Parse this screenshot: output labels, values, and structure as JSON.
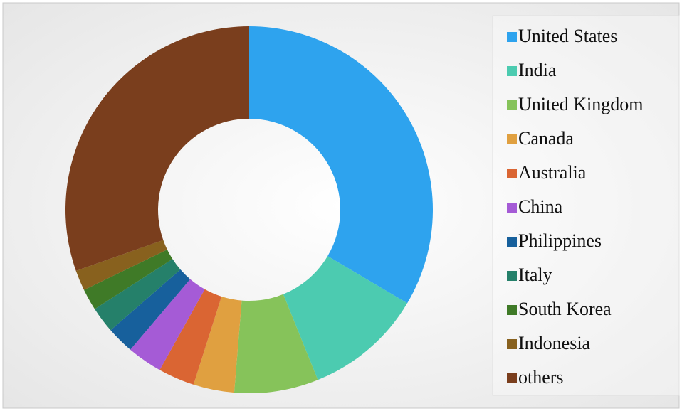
{
  "chart_data": {
    "type": "donut",
    "categories": [
      "United States",
      "India",
      "United Kingdom",
      "Canada",
      "Australia",
      "China",
      "Philippines",
      "Italy",
      "South Korea",
      "Indonesia",
      "others"
    ],
    "values": [
      33.5,
      10.4,
      7.4,
      3.6,
      3.2,
      3.1,
      2.4,
      2.3,
      1.9,
      1.8,
      30.4
    ],
    "colors": [
      "#2ea3ee",
      "#4ccbb0",
      "#86c35a",
      "#e0a040",
      "#da6533",
      "#a55bd6",
      "#17609c",
      "#25806a",
      "#3f7a27",
      "#88611e",
      "#7a3e1d"
    ],
    "legend": "right"
  }
}
